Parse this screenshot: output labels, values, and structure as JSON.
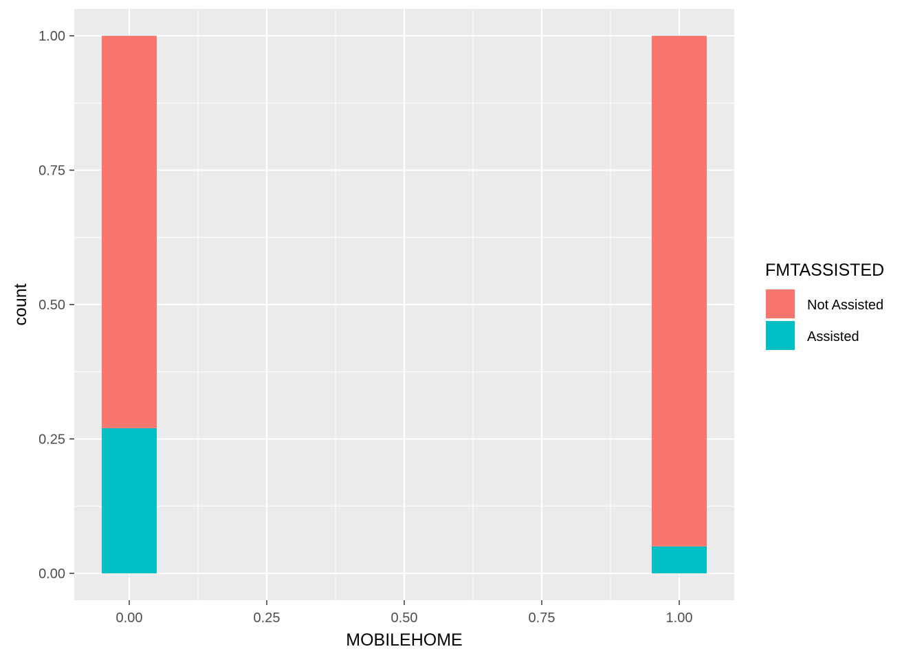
{
  "chart_data": {
    "type": "bar",
    "stacked": true,
    "position": "fill",
    "xlabel": "MOBILEHOME",
    "ylabel": "count",
    "xlim": [
      -0.1,
      1.1
    ],
    "ylim": [
      -0.05,
      1.05
    ],
    "x_ticks": [
      0,
      0.25,
      0.5,
      0.75,
      1
    ],
    "x_tick_labels": [
      "0.00",
      "0.25",
      "0.50",
      "0.75",
      "1.00"
    ],
    "y_ticks": [
      0,
      0.25,
      0.5,
      0.75,
      1
    ],
    "y_tick_labels": [
      "0.00",
      "0.25",
      "0.50",
      "0.75",
      "1.00"
    ],
    "bar_width": 0.1,
    "grid": true,
    "legend": {
      "title": "FMTASSISTED",
      "placement": "right",
      "entries": [
        "Not Assisted",
        "Assisted"
      ]
    },
    "x": [
      0,
      1
    ],
    "series": [
      {
        "name": "Assisted",
        "color": "#00BFC4",
        "values": [
          0.27,
          0.05
        ]
      },
      {
        "name": "Not Assisted",
        "color": "#F8766D",
        "values": [
          0.73,
          0.95
        ]
      }
    ]
  }
}
